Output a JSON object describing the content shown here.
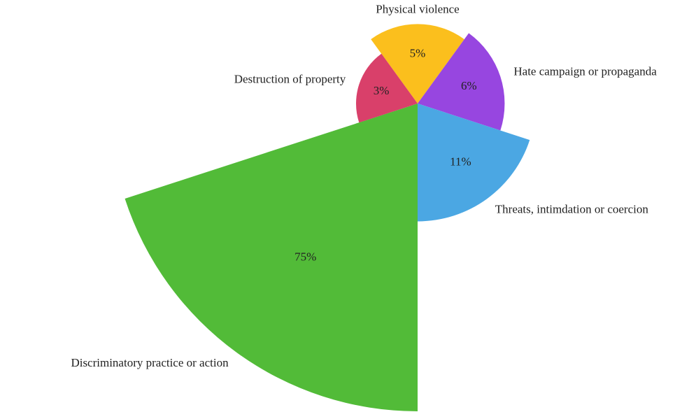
{
  "chart_data": {
    "type": "polar_area",
    "categories": [
      "Physical violence",
      "Hate campaign or propaganda",
      "Threats, intimdation or coercion",
      "Discriminatory practice or action",
      "Destruction of property"
    ],
    "values": [
      5,
      6,
      11,
      75,
      3
    ],
    "value_labels": [
      "5%",
      "6%",
      "11%",
      "75%",
      "3%"
    ],
    "colors": [
      "#fbbf1d",
      "#9746e0",
      "#4ba7e3",
      "#52bb38",
      "#d9406a"
    ]
  }
}
